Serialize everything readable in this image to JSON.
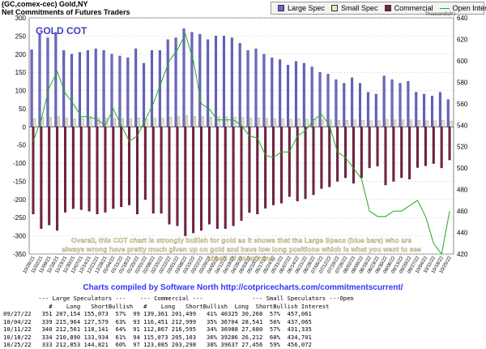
{
  "header": {
    "line1": "(GC,comex-cec) Gold,NY",
    "line2": "Net Commitments of Futures Traders"
  },
  "legend": [
    {
      "label": "Large Spec",
      "color": "#6a6acc"
    },
    {
      "label": "Small Spec",
      "color": "#e8e8c0"
    },
    {
      "label": "Commercial",
      "color": "#7a2040"
    },
    {
      "label": "Open Interest",
      "color": "#22aa22"
    }
  ],
  "chart_data": {
    "type": "bar",
    "title": "GOLD COT",
    "right_axis_label": "Thousands(K)",
    "ylim": [
      -350,
      300
    ],
    "y_ticks": [
      300,
      250,
      200,
      150,
      100,
      50,
      0,
      -50,
      -100,
      -150,
      -200,
      -250,
      -300,
      -350
    ],
    "y2lim": [
      420,
      640
    ],
    "y2_ticks": [
      640,
      620,
      600,
      580,
      560,
      540,
      520,
      500,
      480,
      460,
      440,
      420
    ],
    "categories": [
      "10/26/21",
      "11/02/21",
      "11/09/21",
      "11/16/21",
      "11/23/21",
      "11/30/21",
      "12/07/21",
      "12/14/21",
      "12/21/21",
      "12/28/21",
      "01/04/22",
      "01/11/22",
      "01/18/22",
      "01/25/22",
      "02/01/22",
      "02/08/22",
      "02/15/22",
      "02/22/22",
      "03/01/22",
      "03/08/22",
      "03/15/22",
      "03/22/22",
      "03/29/22",
      "04/05/22",
      "04/12/22",
      "04/19/22",
      "04/26/22",
      "05/03/22",
      "05/10/22",
      "05/17/22",
      "05/24/22",
      "05/31/22",
      "06/07/22",
      "06/14/22",
      "06/21/22",
      "06/28/22",
      "07/05/22",
      "07/12/22",
      "07/19/22",
      "07/26/22",
      "08/02/22",
      "08/09/22",
      "08/16/22",
      "08/23/22",
      "08/30/22",
      "09/06/22",
      "09/13/22",
      "09/20/22",
      "09/27/22",
      "10/04/22",
      "10/11/22",
      "10/18/22",
      "10/25/22"
    ],
    "series": [
      {
        "name": "Large Spec",
        "color": "#6a6acc",
        "values": [
          212,
          255,
          245,
          260,
          210,
          200,
          205,
          210,
          215,
          210,
          200,
          195,
          190,
          215,
          175,
          210,
          210,
          240,
          245,
          270,
          260,
          255,
          240,
          250,
          250,
          245,
          230,
          210,
          215,
          200,
          190,
          185,
          170,
          180,
          175,
          165,
          150,
          145,
          130,
          120,
          135,
          120,
          95,
          90,
          140,
          130,
          120,
          125,
          95,
          90,
          85,
          95,
          75
        ]
      },
      {
        "name": "Small Spec",
        "color": "#e8e8c0",
        "values": [
          22,
          27,
          26,
          28,
          24,
          22,
          23,
          24,
          25,
          24,
          23,
          23,
          22,
          25,
          21,
          24,
          24,
          27,
          28,
          30,
          29,
          28,
          27,
          28,
          28,
          27,
          26,
          24,
          25,
          23,
          22,
          22,
          21,
          22,
          21,
          20,
          19,
          19,
          18,
          18,
          19,
          18,
          17,
          17,
          20,
          19,
          19,
          19,
          18,
          17,
          17,
          18,
          16
        ]
      },
      {
        "name": "Commercial",
        "color": "#7a2040",
        "values": [
          -240,
          -280,
          -270,
          -285,
          -235,
          -225,
          -228,
          -232,
          -240,
          -235,
          -225,
          -220,
          -215,
          -240,
          -200,
          -238,
          -238,
          -268,
          -272,
          -300,
          -292,
          -285,
          -268,
          -280,
          -280,
          -272,
          -258,
          -236,
          -240,
          -224,
          -215,
          -210,
          -192,
          -204,
          -198,
          -187,
          -170,
          -165,
          -150,
          -140,
          -155,
          -140,
          -113,
          -108,
          -160,
          -150,
          -140,
          -144,
          -112,
          -107,
          -101,
          -113,
          -91
        ]
      }
    ],
    "open_interest": {
      "name": "Open Interest",
      "color": "#22aa22",
      "values": [
        525,
        545,
        575,
        590,
        570,
        560,
        548,
        548,
        545,
        540,
        555,
        540,
        525,
        530,
        545,
        560,
        580,
        600,
        610,
        625,
        600,
        560,
        555,
        545,
        545,
        545,
        540,
        530,
        528,
        512,
        510,
        515,
        515,
        530,
        535,
        545,
        550,
        540,
        515,
        510,
        500,
        490,
        460,
        455,
        455,
        460,
        460,
        465,
        470,
        455,
        430,
        420,
        460
      ]
    },
    "annotation": "Overall, this COT chart is strongly bullish for gold as it shows that the Large Specs (blue bars) who are always wrong have pretty much given up on gold and have low long positions which is what you want to see ahead of an uptrend.",
    "grid": true
  },
  "footer": {
    "compiled_by": "Charts compiled by Software North  http://cotpricecharts.com/commitmentscurrent/"
  },
  "table": {
    "headers1": [
      "",
      "--- Large Speculators ---",
      "--- Commercial ---",
      "--- Small Speculators ---",
      "Open"
    ],
    "headers2": [
      "",
      "#",
      "Long",
      "Short",
      "Bullish",
      "#",
      "Long",
      "Short",
      "Bullish",
      "Long",
      "Short",
      "Bullish",
      "Interest"
    ],
    "rows": [
      [
        "09/27/22",
        "351",
        "207,154",
        "155,073",
        "57%",
        "99",
        "139,361",
        "201,499",
        "41%",
        "40325",
        "30,268",
        "57%",
        "457,061"
      ],
      [
        "10/04/22",
        "339",
        "215,964",
        "127,579",
        "63%",
        "93",
        "116,451",
        "212,999",
        "35%",
        "36704",
        "28,541",
        "56%",
        "437,065"
      ],
      [
        "10/11/22",
        "340",
        "212,561",
        "118,141",
        "64%",
        "91",
        "112,867",
        "216,595",
        "34%",
        "36988",
        "27,680",
        "57%",
        "431,335"
      ],
      [
        "10/18/22",
        "334",
        "210,890",
        "133,934",
        "61%",
        "94",
        "115,073",
        "205,103",
        "36%",
        "39286",
        "26,212",
        "60%",
        "434,701"
      ],
      [
        "10/25/22",
        "333",
        "212,853",
        "144,821",
        "60%",
        "97",
        "123,085",
        "203,298",
        "38%",
        "39637",
        "27,456",
        "59%",
        "456,072"
      ]
    ]
  }
}
